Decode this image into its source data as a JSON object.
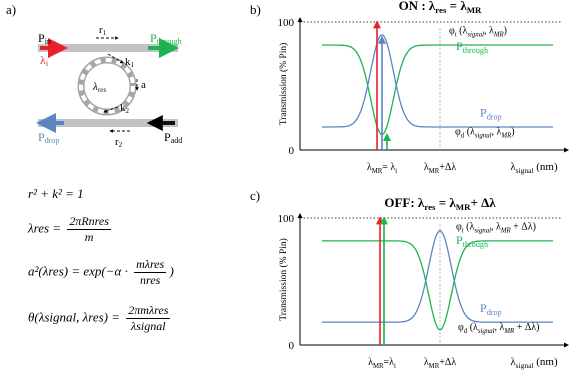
{
  "panels": {
    "a": "a)",
    "b": "b)",
    "c": "c)"
  },
  "ring": {
    "p_in": "P",
    "p_in_sub": "in",
    "lambda_i": "λ",
    "lambda_i_sub": "i",
    "p_through": "P",
    "p_through_sub": "through",
    "r1": "r",
    "r1_sub": "1",
    "k1": "k",
    "k1_sub": "1",
    "a": "a",
    "lambda_res": "λ",
    "lambda_res_sub": "res",
    "k2": "k",
    "k2_sub": "2",
    "p_drop": "P",
    "p_drop_sub": "drop",
    "r2": "r",
    "r2_sub": "2",
    "p_add": "P",
    "p_add_sub": "add"
  },
  "equations": {
    "eq1": "r² + k² = 1",
    "eq2_lhs": "λres =",
    "eq2_num": "2πRnres",
    "eq2_den": "m",
    "eq3_lhs": "a²(λres) = exp(−α ·",
    "eq3_num": "mλres",
    "eq3_den": "nres",
    "eq3_end": ")",
    "eq4_lhs": "θ(λsignal, λres) =",
    "eq4_num": "2πmλres",
    "eq4_den": "λsignal"
  },
  "chart_data": [
    {
      "type": "line",
      "title": "ON : λres = λMR",
      "ylabel": "Transmission (% Pin)",
      "xlabel": "λsignal (nm)",
      "ylim": [
        0,
        100
      ],
      "yticks": [
        "0",
        "100"
      ],
      "xticks": [
        "λMR = λi",
        "λMR+Δλ"
      ],
      "series": [
        {
          "name": "Pthrough",
          "color": "#1db34f",
          "kind": "dip",
          "center": 0.0,
          "baseline": 82,
          "extreme": 12
        },
        {
          "name": "Pdrop",
          "color": "#5b86c2",
          "kind": "peak",
          "center": 0.0,
          "baseline": 18,
          "extreme": 90
        }
      ],
      "annotations": [
        "φt(λsignal, λMR)",
        "φd(λsignal, λMR)"
      ],
      "arrows": [
        {
          "color": "#e8212a",
          "meaning": "signal λi",
          "x": 0.0
        },
        {
          "color": "#5b86c2",
          "meaning": "drop",
          "x": 0.0
        },
        {
          "color": "#1db34f",
          "meaning": "through",
          "x": 0.0
        }
      ]
    },
    {
      "type": "line",
      "title": "OFF: λres = λMR+ Δλ",
      "ylabel": "Transmission (% Pin)",
      "xlabel": "λsignal (nm)",
      "ylim": [
        0,
        100
      ],
      "yticks": [
        "0",
        "100"
      ],
      "xticks": [
        "λMR=λi",
        "λMR+Δλ"
      ],
      "series": [
        {
          "name": "Pthrough",
          "color": "#1db34f",
          "kind": "dip",
          "center": 1.0,
          "baseline": 82,
          "extreme": 12
        },
        {
          "name": "Pdrop",
          "color": "#5b86c2",
          "kind": "peak",
          "center": 1.0,
          "baseline": 18,
          "extreme": 90
        }
      ],
      "annotations": [
        "φt(λsignal, λMR + Δλ)",
        "φd(λsignal, λMR + Δλ)"
      ],
      "arrows": [
        {
          "color": "#e8212a",
          "meaning": "signal λi",
          "x": 0.0
        },
        {
          "color": "#1db34f",
          "meaning": "through",
          "x": 0.0
        }
      ]
    }
  ]
}
